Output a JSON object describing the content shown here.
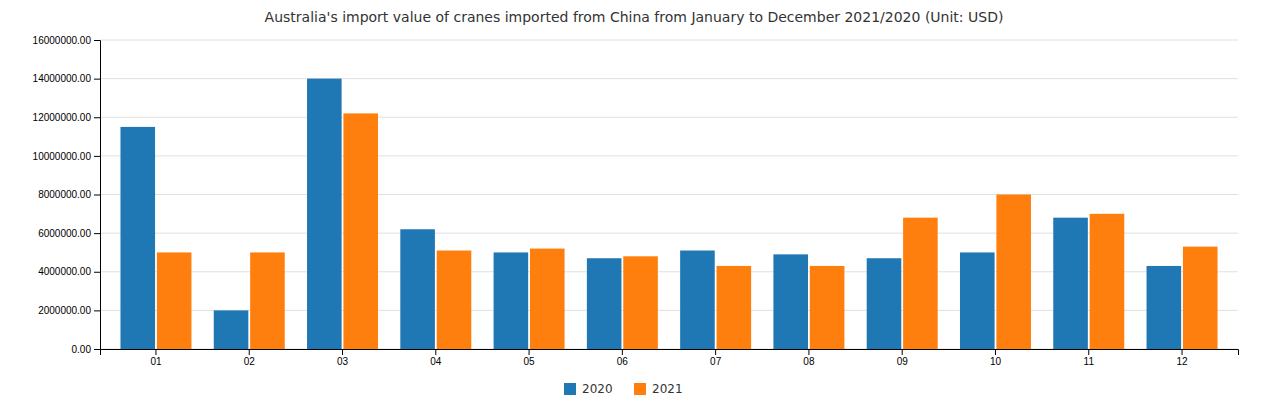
{
  "chart_data": {
    "type": "bar",
    "title": "Australia's import value of cranes imported from China from January to December 2021/2020 (Unit: USD)",
    "categories": [
      "01",
      "02",
      "03",
      "04",
      "05",
      "06",
      "07",
      "08",
      "09",
      "10",
      "11",
      "12"
    ],
    "series": [
      {
        "name": "2020",
        "values": [
          11500000,
          2000000,
          14000000,
          6200000,
          5000000,
          4700000,
          5100000,
          4900000,
          4700000,
          5000000,
          6800000,
          4300000
        ]
      },
      {
        "name": "2021",
        "values": [
          5000000,
          5000000,
          12200000,
          5100000,
          5200000,
          4800000,
          4300000,
          4300000,
          6800000,
          8000000,
          7000000,
          5300000
        ]
      }
    ],
    "ylim": [
      0,
      16000000
    ],
    "yticks": [
      {
        "value": 0,
        "label": "0.00"
      },
      {
        "value": 2000000,
        "label": "2000000.00"
      },
      {
        "value": 4000000,
        "label": "4000000.00"
      },
      {
        "value": 6000000,
        "label": "6000000.00"
      },
      {
        "value": 8000000,
        "label": "8000000.00"
      },
      {
        "value": 10000000,
        "label": "10000000.00"
      },
      {
        "value": 12000000,
        "label": "12000000.00"
      },
      {
        "value": 14000000,
        "label": "14000000.00"
      },
      {
        "value": 16000000,
        "label": "16000000.00"
      }
    ],
    "grid": true,
    "legend": "bottom"
  }
}
